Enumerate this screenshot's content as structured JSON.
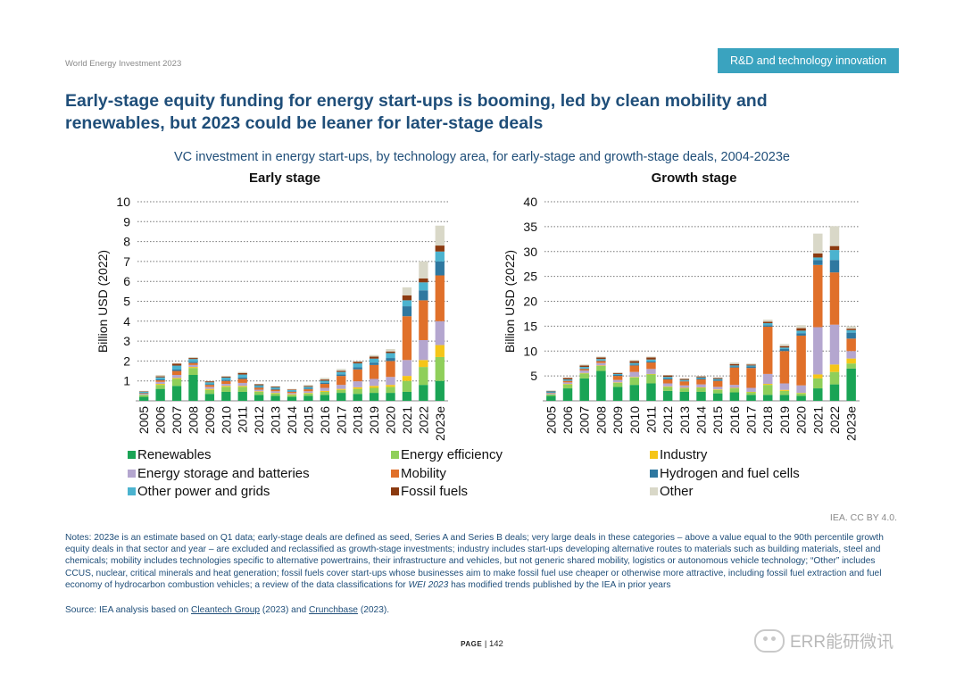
{
  "header": {
    "report": "World Energy Investment 2023",
    "section_badge": "R&D and technology innovation"
  },
  "title": "Early-stage equity funding for energy start-ups is booming, led by clean mobility and renewables, but 2023 could be leaner for later-stage deals",
  "subtitle": "VC investment in energy start-ups, by technology area, for early-stage and growth-stage deals, 2004-2023e",
  "credit": "IEA. CC BY 4.0.",
  "notes": "Notes: 2023e is an estimate based on Q1 data; early-stage deals are defined as seed, Series A and Series B deals; very large deals in these categories – above a value equal to the 90th percentile growth equity deals in that sector and year – are excluded and reclassified as growth-stage investments; industry includes start-ups developing alternative routes to materials such as building materials, steel and chemicals; mobility includes technologies specific to alternative powertrains, their infrastructure and vehicles, but not generic shared mobility, logistics or autonomous vehicle technology; “Other” includes CCUS, nuclear, critical minerals and heat generation; fossil fuels cover start-ups whose businesses aim to make fossil fuel use cheaper or otherwise more attractive, including fossil fuel extraction and fuel economy of hydrocarbon combustion vehicles; a review of the data classifications for",
  "notes_italic": "WEI 2023",
  "notes_tail": "has modified trends published by the IEA in prior years",
  "source": {
    "prefix": "Source: IEA analysis based on",
    "link1": "Cleantech Group",
    "mid": "(2023) and",
    "link2": "Crunchbase",
    "suffix": "(2023)."
  },
  "page": {
    "label": "PAGE",
    "number": "| 142"
  },
  "watermark": "ERR能研微讯",
  "colors": {
    "renewables": "#1aa455",
    "energy_efficiency": "#8fcf5a",
    "industry": "#f5c518",
    "storage": "#b4a6cf",
    "mobility": "#e0702a",
    "hydrogen": "#2f78a0",
    "power_grids": "#4bb3cf",
    "fossil": "#8b3a10",
    "other": "#d9d8c8",
    "title": "#1f4e79",
    "badge": "#3aa3bf"
  },
  "chart_data": [
    {
      "type": "bar",
      "stacked": true,
      "title": "Early stage",
      "ylabel": "Billion USD (2022)",
      "ylim": [
        0,
        10
      ],
      "yticks": [
        1,
        2,
        3,
        4,
        5,
        6,
        7,
        8,
        9,
        10
      ],
      "grid": true,
      "categories": [
        "2005",
        "2006",
        "2007",
        "2008",
        "2009",
        "2010",
        "2011",
        "2012",
        "2013",
        "2014",
        "2015",
        "2016",
        "2017",
        "2018",
        "2019",
        "2020",
        "2021",
        "2022",
        "2023e"
      ],
      "series": [
        {
          "name": "Renewables",
          "color": "#1aa455",
          "values": [
            0.2,
            0.6,
            0.75,
            1.3,
            0.35,
            0.45,
            0.45,
            0.3,
            0.25,
            0.2,
            0.25,
            0.3,
            0.4,
            0.35,
            0.4,
            0.4,
            0.45,
            0.8,
            1.0
          ]
        },
        {
          "name": "Energy efficiency",
          "color": "#8fcf5a",
          "values": [
            0.1,
            0.2,
            0.35,
            0.35,
            0.2,
            0.25,
            0.25,
            0.15,
            0.12,
            0.1,
            0.12,
            0.15,
            0.15,
            0.25,
            0.25,
            0.3,
            0.55,
            0.9,
            1.2
          ]
        },
        {
          "name": "Industry",
          "color": "#f5c518",
          "values": [
            0,
            0.05,
            0.05,
            0.05,
            0.05,
            0.05,
            0.05,
            0.03,
            0.03,
            0.03,
            0.03,
            0.05,
            0.05,
            0.08,
            0.1,
            0.1,
            0.25,
            0.35,
            0.6
          ]
        },
        {
          "name": "Energy storage and batteries",
          "color": "#b4a6cf",
          "values": [
            0.05,
            0.1,
            0.15,
            0.1,
            0.1,
            0.1,
            0.15,
            0.08,
            0.08,
            0.06,
            0.08,
            0.15,
            0.2,
            0.3,
            0.35,
            0.4,
            0.8,
            1.0,
            1.2
          ]
        },
        {
          "name": "Mobility",
          "color": "#e0702a",
          "values": [
            0.03,
            0.08,
            0.2,
            0.1,
            0.1,
            0.15,
            0.2,
            0.1,
            0.08,
            0.06,
            0.1,
            0.2,
            0.45,
            0.6,
            0.7,
            0.8,
            2.2,
            2.0,
            2.3
          ]
        },
        {
          "name": "Hydrogen and fuel cells",
          "color": "#2f78a0",
          "values": [
            0.02,
            0.05,
            0.07,
            0.05,
            0.03,
            0.05,
            0.07,
            0.04,
            0.04,
            0.03,
            0.04,
            0.06,
            0.08,
            0.1,
            0.12,
            0.15,
            0.5,
            0.5,
            0.7
          ]
        },
        {
          "name": "Other power and grids",
          "color": "#4bb3cf",
          "values": [
            0.05,
            0.1,
            0.2,
            0.15,
            0.1,
            0.12,
            0.15,
            0.08,
            0.08,
            0.06,
            0.08,
            0.1,
            0.12,
            0.2,
            0.2,
            0.25,
            0.3,
            0.4,
            0.5
          ]
        },
        {
          "name": "Fossil fuels",
          "color": "#8b3a10",
          "values": [
            0.02,
            0.05,
            0.1,
            0.05,
            0.05,
            0.05,
            0.08,
            0.05,
            0.04,
            0.03,
            0.04,
            0.06,
            0.06,
            0.08,
            0.1,
            0.08,
            0.25,
            0.2,
            0.3
          ]
        },
        {
          "name": "Other",
          "color": "#d9d8c8",
          "values": [
            0.03,
            0.07,
            0.03,
            0.05,
            0.02,
            0.03,
            0.05,
            0.02,
            0.02,
            0.03,
            0.06,
            0.08,
            0.09,
            0.04,
            0.08,
            0.12,
            0.4,
            0.85,
            1.0
          ]
        }
      ]
    },
    {
      "type": "bar",
      "stacked": true,
      "title": "Growth stage",
      "ylabel": "Billion USD (2022)",
      "ylim": [
        0,
        40
      ],
      "yticks": [
        5,
        10,
        15,
        20,
        25,
        30,
        35,
        40
      ],
      "grid": true,
      "categories": [
        "2005",
        "2006",
        "2007",
        "2008",
        "2009",
        "2010",
        "2011",
        "2012",
        "2013",
        "2014",
        "2015",
        "2016",
        "2017",
        "2018",
        "2019",
        "2020",
        "2021",
        "2022",
        "2023e"
      ],
      "series": [
        {
          "name": "Renewables",
          "color": "#1aa455",
          "values": [
            1.0,
            2.5,
            4.5,
            6.0,
            2.8,
            3.2,
            3.5,
            2.0,
            1.8,
            1.8,
            1.5,
            1.7,
            1.2,
            1.2,
            1.2,
            1.0,
            2.5,
            3.3,
            6.5
          ]
        },
        {
          "name": "Energy efficiency",
          "color": "#8fcf5a",
          "values": [
            0.3,
            0.8,
            1.0,
            1.0,
            0.8,
            1.5,
            1.8,
            0.8,
            0.7,
            0.8,
            0.7,
            0.8,
            0.5,
            2.0,
            0.8,
            0.5,
            2.0,
            2.5,
            1.0
          ]
        },
        {
          "name": "Industry",
          "color": "#f5c518",
          "values": [
            0,
            0.1,
            0.1,
            0.1,
            0.1,
            0.1,
            0.1,
            0.1,
            0.1,
            0.1,
            0.1,
            0.1,
            0.1,
            0.2,
            0.2,
            0.1,
            0.8,
            1.5,
            1.0
          ]
        },
        {
          "name": "Energy storage and batteries",
          "color": "#b4a6cf",
          "values": [
            0.2,
            0.3,
            0.5,
            0.5,
            0.5,
            1.0,
            1.0,
            0.6,
            0.5,
            0.6,
            0.5,
            0.6,
            0.8,
            2.0,
            1.3,
            1.5,
            9.5,
            8.0,
            1.5
          ]
        },
        {
          "name": "Mobility",
          "color": "#e0702a",
          "values": [
            0.1,
            0.3,
            0.3,
            0.4,
            0.8,
            1.3,
            1.3,
            0.8,
            0.8,
            1.0,
            1.2,
            3.5,
            4.0,
            9.5,
            6.5,
            10.0,
            12.5,
            10.5,
            2.5
          ]
        },
        {
          "name": "Hydrogen and fuel cells",
          "color": "#2f78a0",
          "values": [
            0.1,
            0.1,
            0.1,
            0.1,
            0.2,
            0.2,
            0.2,
            0.2,
            0.1,
            0.2,
            0.2,
            0.2,
            0.3,
            0.3,
            0.4,
            0.5,
            1.0,
            2.5,
            1.2
          ]
        },
        {
          "name": "Other power and grids",
          "color": "#4bb3cf",
          "values": [
            0.2,
            0.2,
            0.3,
            0.3,
            0.2,
            0.3,
            0.4,
            0.3,
            0.2,
            0.2,
            0.2,
            0.2,
            0.2,
            0.4,
            0.3,
            0.5,
            0.5,
            2.0,
            0.5
          ]
        },
        {
          "name": "Fossil fuels",
          "color": "#8b3a10",
          "values": [
            0.1,
            0.3,
            0.3,
            0.3,
            0.2,
            0.4,
            0.4,
            0.3,
            0.2,
            0.2,
            0.2,
            0.3,
            0.2,
            0.3,
            0.3,
            0.5,
            0.8,
            0.8,
            0.3
          ]
        },
        {
          "name": "Other",
          "color": "#d9d8c8",
          "values": [
            0.1,
            0.1,
            0.2,
            0.2,
            0.1,
            0.2,
            0.2,
            0.1,
            0.1,
            0.1,
            0.1,
            0.3,
            0.2,
            0.4,
            0.4,
            0.6,
            4.0,
            4.0,
            0.5
          ]
        }
      ]
    }
  ],
  "legend": [
    [
      "Renewables",
      "Energy efficiency",
      "Industry"
    ],
    [
      "Energy storage and batteries",
      "Mobility",
      "Hydrogen and fuel cells"
    ],
    [
      "Other power and grids",
      "Fossil fuels",
      "Other"
    ]
  ]
}
